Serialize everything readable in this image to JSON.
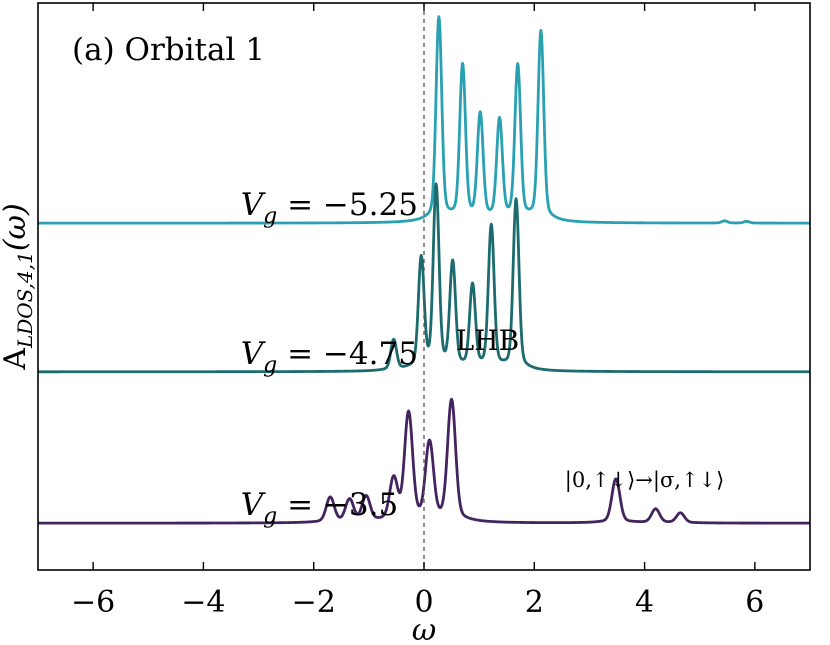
{
  "chart_data": {
    "type": "line",
    "panel_label": "(a) Orbital 1",
    "xlabel": "ω",
    "ylabel": {
      "main": "A",
      "sub": "LDOS,4,1",
      "arg": "(ω)"
    },
    "xlim": [
      -7,
      7
    ],
    "ylim": [
      -0.3,
      10.0
    ],
    "xticks": [
      -6,
      -4,
      -2,
      0,
      2,
      4,
      6
    ],
    "xtick_labels": [
      "−6",
      "−4",
      "−2",
      "0",
      "2",
      "4",
      "6"
    ],
    "grid": false,
    "vertical_reference_line_x": 0,
    "annotations": {
      "lhb": "LHB",
      "transition": "|0,↑↓⟩→|σ,↑↓⟩",
      "transition_at_x": 4.0
    },
    "series": [
      {
        "label_prefix": "V",
        "label_sub": "g",
        "label_value": " = −5.25",
        "label_at_x": -5.1,
        "color": "#2aa1b3",
        "baseline": 6.0,
        "width": 0.05,
        "tail_width": 0.16,
        "peaks": [
          {
            "x": 0.27,
            "h": 3.7
          },
          {
            "x": 0.7,
            "h": 2.8
          },
          {
            "x": 1.02,
            "h": 1.9
          },
          {
            "x": 1.37,
            "h": 1.8
          },
          {
            "x": 1.7,
            "h": 2.8
          },
          {
            "x": 2.12,
            "h": 3.45
          },
          {
            "x": 5.45,
            "h": 0.04
          },
          {
            "x": 5.85,
            "h": 0.03
          }
        ]
      },
      {
        "label_prefix": "V",
        "label_sub": "g",
        "label_value": " = −4.75",
        "label_at_x": -5.1,
        "color": "#1c6b6e",
        "baseline": 3.3,
        "width": 0.05,
        "tail_width": 0.16,
        "peaks": [
          {
            "x": -0.55,
            "h": 0.55
          },
          {
            "x": -0.05,
            "h": 2.0
          },
          {
            "x": 0.22,
            "h": 3.3
          },
          {
            "x": 0.52,
            "h": 1.9
          },
          {
            "x": 0.88,
            "h": 1.5
          },
          {
            "x": 1.22,
            "h": 2.6
          },
          {
            "x": 1.67,
            "h": 3.1
          }
        ]
      },
      {
        "label_prefix": "V",
        "label_sub": "g",
        "label_value": " = −3.5",
        "label_at_x": -5.1,
        "color": "#43245f",
        "baseline": 0.55,
        "width": 0.07,
        "tail_width": 0.22,
        "peaks": [
          {
            "x": -1.7,
            "h": 0.45
          },
          {
            "x": -1.35,
            "h": 0.4
          },
          {
            "x": -1.05,
            "h": 0.45
          },
          {
            "x": -0.55,
            "h": 0.75
          },
          {
            "x": -0.28,
            "h": 1.95
          },
          {
            "x": 0.1,
            "h": 1.4
          },
          {
            "x": 0.5,
            "h": 2.2
          },
          {
            "x": 3.48,
            "h": 0.8
          },
          {
            "x": 4.2,
            "h": 0.25
          },
          {
            "x": 4.65,
            "h": 0.18
          }
        ]
      }
    ]
  }
}
